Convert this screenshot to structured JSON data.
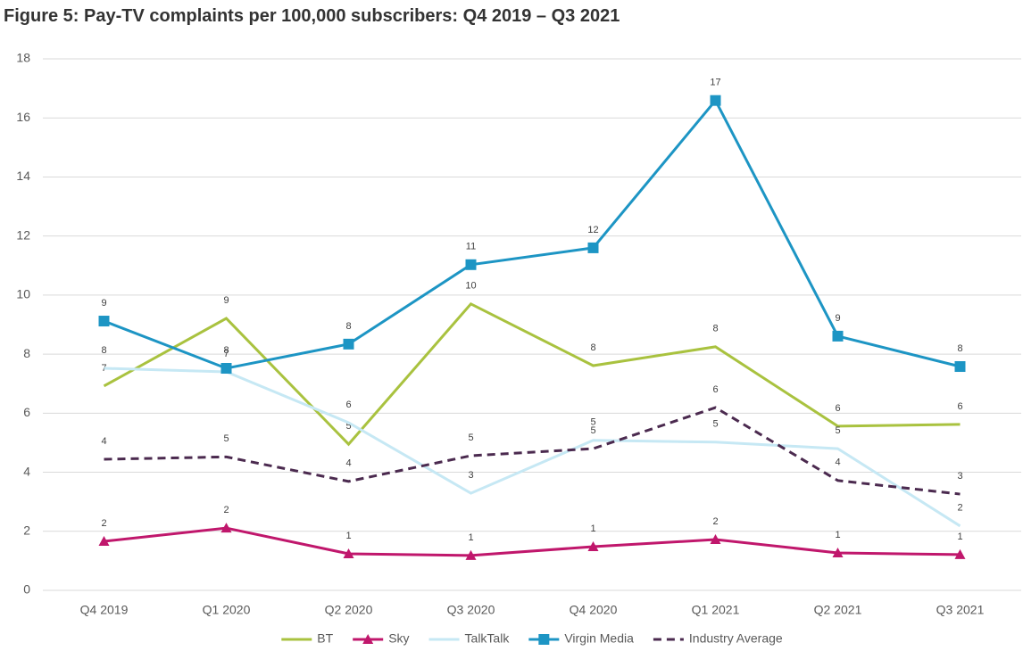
{
  "chart_data": {
    "type": "line",
    "title": "Figure 5: Pay-TV complaints per 100,000 subscribers: Q4 2019 – Q3 2021",
    "categories": [
      "Q4 2019",
      "Q1 2020",
      "Q2 2020",
      "Q3 2020",
      "Q4 2020",
      "Q1 2021",
      "Q2 2021",
      "Q3 2021"
    ],
    "ylim": [
      0,
      18
    ],
    "yticks": [
      0,
      2,
      4,
      6,
      8,
      10,
      12,
      14,
      16,
      18
    ],
    "grid": true,
    "legend": "bottom",
    "series": [
      {
        "name": "BT",
        "color": "#a9c23f",
        "marker": "none",
        "dash": false,
        "values": [
          6.92,
          9.21,
          4.95,
          9.7,
          7.61,
          8.25,
          5.56,
          5.62
        ],
        "value_labels": [
          "7",
          "9",
          "5",
          "10",
          "8",
          "8",
          "6",
          "6"
        ]
      },
      {
        "name": "Sky",
        "color": "#c0176c",
        "marker": "triangle",
        "dash": false,
        "values": [
          1.66,
          2.11,
          1.24,
          1.18,
          1.48,
          1.72,
          1.27,
          1.21
        ],
        "value_labels": [
          "2",
          "2",
          "1",
          "1",
          "1",
          "2",
          "1",
          "1"
        ]
      },
      {
        "name": "TalkTalk",
        "color": "#c6e8f4",
        "marker": "none",
        "dash": false,
        "values": [
          7.52,
          7.4,
          5.68,
          3.29,
          5.08,
          5.02,
          4.8,
          2.18
        ],
        "value_labels": [
          "8",
          "7",
          "6",
          "3",
          "5",
          "5",
          "5",
          "2"
        ]
      },
      {
        "name": "Virgin Media",
        "color": "#1d95c4",
        "marker": "square",
        "dash": false,
        "values": [
          9.12,
          7.52,
          8.34,
          11.03,
          11.6,
          16.59,
          8.61,
          7.58
        ],
        "value_labels": [
          "9",
          "8",
          "8",
          "11",
          "12",
          "17",
          "9",
          "8"
        ]
      },
      {
        "name": "Industry Average",
        "color": "#4b2a4f",
        "marker": "none",
        "dash": true,
        "values": [
          4.44,
          4.52,
          3.69,
          4.56,
          4.8,
          6.19,
          3.72,
          3.26
        ],
        "value_labels": [
          "4",
          "5",
          "4",
          "5",
          "5",
          "6",
          "4",
          "3"
        ]
      }
    ]
  }
}
